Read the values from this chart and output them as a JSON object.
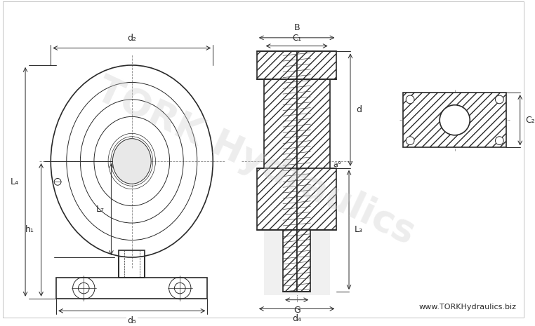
{
  "bg_color": "#ffffff",
  "line_color": "#2a2a2a",
  "hatch_color": "#2a2a2a",
  "dim_color": "#2a2a2a",
  "watermark_color": "#cccccc",
  "watermark_text": "TORK Hydraulics",
  "website_text": "www.TORKHydraulics.biz",
  "labels": {
    "d2": "d₂",
    "d5": "d₅",
    "d4": "d₄",
    "L4": "L₄",
    "L7": "L₇",
    "h1": "h₁",
    "B": "B",
    "C1": "C₁",
    "d": "d",
    "a": "a°",
    "L3": "L₃",
    "G": "G",
    "C2": "C₂"
  },
  "figsize": [
    7.62,
    4.65
  ],
  "dpi": 100
}
